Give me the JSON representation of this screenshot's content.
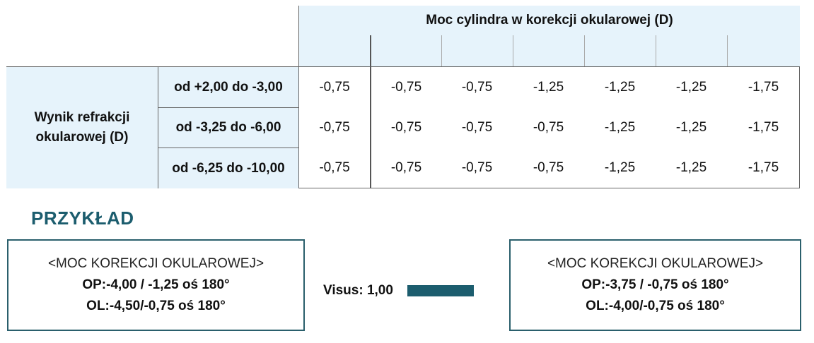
{
  "table": {
    "column_header": "Moc cylindra w korekcji okularowej (D)",
    "row_header": "Wynik refrakcji okularowej (D)",
    "rows": [
      {
        "range": "od +2,00 do -3,00",
        "values": [
          "-0,75",
          "-0,75",
          "-0,75",
          "-1,25",
          "-1,25",
          "-1,25",
          "-1,75"
        ]
      },
      {
        "range": "od -3,25 do -6,00",
        "values": [
          "-0,75",
          "-0,75",
          "-0,75",
          "-0,75",
          "-1,25",
          "-1,25",
          "-1,75"
        ]
      },
      {
        "range": "od -6,25 do -10,00",
        "values": [
          "-0,75",
          "-0,75",
          "-0,75",
          "-0,75",
          "-1,25",
          "-1,25",
          "-1,75"
        ]
      }
    ]
  },
  "example": {
    "title": "PRZYKŁAD",
    "visus": "Visus: 1,00",
    "before": {
      "title": "<MOC KOREKCJI OKULAROWEJ>",
      "op": "OP:-4,00 / -1,25 oś 180°",
      "ol": "OL:-4,50/-0,75 oś 180°"
    },
    "after": {
      "title": "<MOC KOREKCJI OKULAROWEJ>",
      "op": "OP:-3,75 / -0,75 oś 180°",
      "ol": "OL:-4,00/-0,75 oś 180°"
    },
    "accent_color": "#1c5d6e"
  }
}
